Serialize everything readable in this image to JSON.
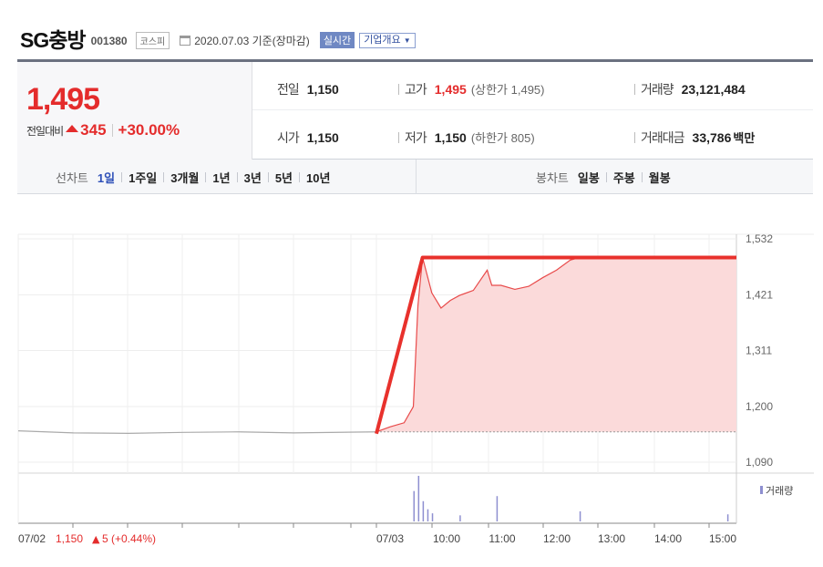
{
  "header": {
    "name": "SG충방",
    "code": "001380",
    "market": "코스피",
    "date_text": "2020.07.03 기준(장마감)",
    "realtime_label": "실시간",
    "company_label": "기업개요"
  },
  "quote": {
    "price": "1,495",
    "diff_label": "전일대비",
    "diff_value": "345",
    "diff_pct": "+30.00%",
    "prev_close_label": "전일",
    "prev_close": "1,150",
    "high_label": "고가",
    "high": "1,495",
    "upper_limit_text": "(상한가 1,495)",
    "volume_label": "거래량",
    "volume": "23,121,484",
    "open_label": "시가",
    "open": "1,150",
    "low_label": "저가",
    "low": "1,150",
    "lower_limit_text": "(하한가 805)",
    "amount_label": "거래대금",
    "amount": "33,786",
    "amount_unit": "백만"
  },
  "period_tabs": {
    "label": "선차트",
    "items": [
      "1일",
      "1주일",
      "3개월",
      "1년",
      "3년",
      "5년",
      "10년"
    ],
    "active": "1일"
  },
  "candle_tabs": {
    "label": "봉차트",
    "items": [
      "일봉",
      "주봉",
      "월봉"
    ]
  },
  "chart_data": {
    "type": "line",
    "y_ticks": [
      "1,532",
      "1,421",
      "1,311",
      "1,200",
      "1,090"
    ],
    "ylim": [
      1090,
      1532
    ],
    "x_ticks": [
      "07/03",
      "10:00",
      "11:00",
      "12:00",
      "13:00",
      "14:00",
      "15:00"
    ],
    "prev_day": {
      "label": "07/02",
      "close": "1,150",
      "change": "5",
      "pct": "(+0.44%)"
    },
    "baseline": 1150,
    "volume_label": "거래량",
    "series": [
      {
        "x": [
          "07/02 09:00",
          "07/02 10:00",
          "07/02 11:00",
          "07/02 12:00",
          "07/02 13:00",
          "07/02 14:00",
          "07/02 15:30",
          "09:00",
          "09:15",
          "09:30",
          "09:40",
          "09:45",
          "09:50",
          "10:00",
          "10:10",
          "10:20",
          "10:30",
          "10:45",
          "11:00",
          "11:05",
          "11:15",
          "11:30",
          "11:45",
          "12:00",
          "12:15",
          "12:30",
          "12:40",
          "15:30"
        ],
        "values": [
          1152,
          1148,
          1147,
          1149,
          1150,
          1148,
          1150,
          1150,
          1160,
          1168,
          1200,
          1400,
          1495,
          1425,
          1395,
          1410,
          1420,
          1430,
          1470,
          1440,
          1440,
          1432,
          1438,
          1455,
          1470,
          1490,
          1495,
          1495
        ]
      }
    ],
    "volume": {
      "x": [
        "09:40",
        "09:45",
        "09:50",
        "09:55",
        "10:00",
        "10:30",
        "11:10",
        "12:40",
        "15:20"
      ],
      "values": [
        30,
        45,
        20,
        12,
        8,
        6,
        25,
        10,
        7
      ]
    },
    "annotation_color": "#e8312c",
    "accent_fill": "#fbdada"
  },
  "colors": {
    "up": "#e42c2c",
    "active_tab": "#2e50b8",
    "info_top_border": "#6b7180"
  }
}
